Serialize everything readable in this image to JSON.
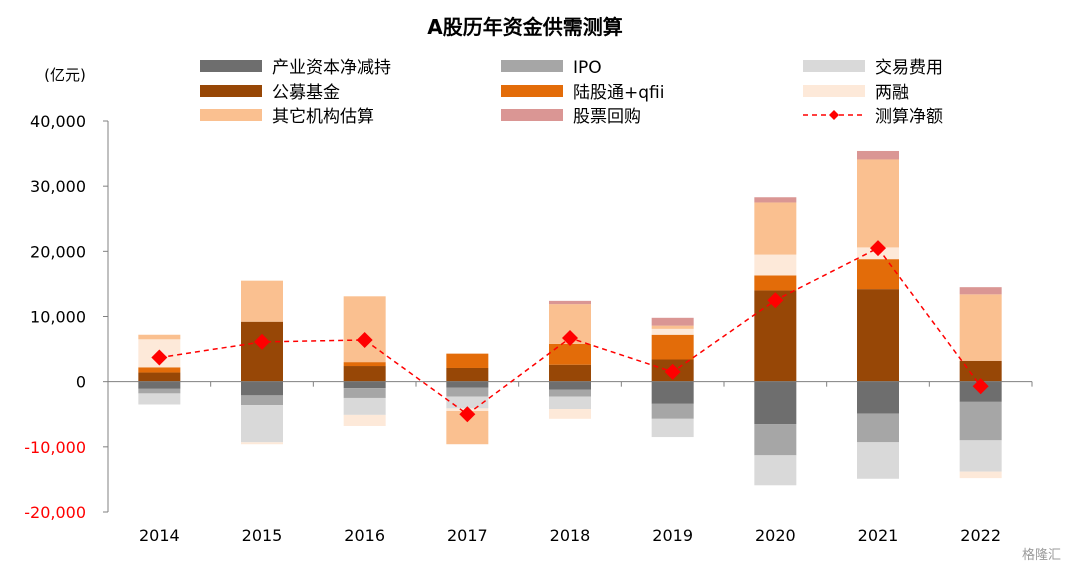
{
  "chart_data": {
    "type": "bar",
    "title": "A股历年资金供需测算",
    "ylabel": "(亿元)",
    "xlabel": "",
    "ylim": [
      -20000,
      40000
    ],
    "yticks": [
      -20000,
      -10000,
      0,
      10000,
      20000,
      30000,
      40000
    ],
    "ytick_labels": [
      "-20,000",
      "-10,000",
      "0",
      "10,000",
      "20,000",
      "30,000",
      "40,000"
    ],
    "negative_tick_color": "#ff0000",
    "categories": [
      "2014",
      "2015",
      "2016",
      "2017",
      "2018",
      "2019",
      "2020",
      "2021",
      "2022"
    ],
    "stacking": "positive series stack upward from 0; negative series stack downward from 0",
    "grid": false,
    "legend_position": "top",
    "series": [
      {
        "name": "产业资本净减持",
        "color": "#6e6e6e",
        "values": [
          -1100,
          -2100,
          -1000,
          -900,
          -1200,
          -3400,
          -6500,
          -4900,
          -3100
        ]
      },
      {
        "name": "IPO",
        "color": "#a6a6a6",
        "values": [
          -700,
          -1500,
          -1500,
          -1400,
          -1100,
          -2300,
          -4800,
          -4400,
          -5900
        ]
      },
      {
        "name": "交易费用",
        "color": "#d9d9d9",
        "values": [
          -1700,
          -5700,
          -2600,
          -1800,
          -1900,
          -2800,
          -4600,
          -5600,
          -4800
        ]
      },
      {
        "name": "公募基金",
        "color": "#974706",
        "values": [
          1400,
          9200,
          2400,
          2100,
          2600,
          3400,
          14000,
          14200,
          3200
        ]
      },
      {
        "name": "陆股通+qfii",
        "color": "#e36c09",
        "values": [
          800,
          0,
          600,
          2200,
          3200,
          3800,
          2300,
          4600,
          0
        ]
      },
      {
        "name": "两融",
        "color": "#fde9d9",
        "values": [
          4300,
          -300,
          -1700,
          -400,
          -1500,
          900,
          3200,
          1800,
          -1000
        ]
      },
      {
        "name": "其它机构估算",
        "color": "#fac090",
        "values": [
          700,
          6300,
          10100,
          -5100,
          6100,
          500,
          8000,
          13500,
          10200
        ]
      },
      {
        "name": "股票回购",
        "color": "#da9694",
        "values": [
          0,
          0,
          0,
          0,
          500,
          1200,
          800,
          1300,
          1100
        ]
      }
    ],
    "line_series": {
      "name": "测算净额",
      "color": "#ff0000",
      "marker": "diamond",
      "line_style": "dashed",
      "values": [
        3700,
        6100,
        6400,
        -5000,
        6700,
        1500,
        12500,
        20500,
        -700
      ]
    }
  },
  "watermark": "格隆汇"
}
